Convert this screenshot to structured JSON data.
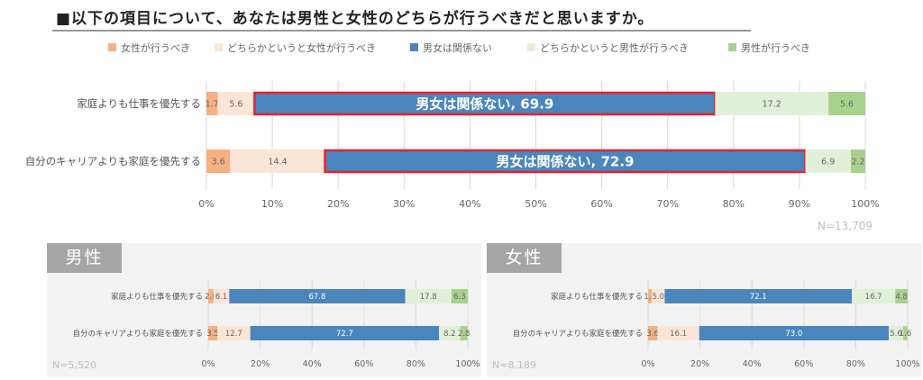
{
  "title": "■以下の項目について、あなたは男性と女性のどちらが行うべきだと思いますか。",
  "legend": [
    {
      "label": "女性が行うべき",
      "color": "#f4b183"
    },
    {
      "label": "どちらかというと女性が行うべき",
      "color": "#fbe5d6"
    },
    {
      "label": "男女は関係ない",
      "color": "#4a86bd"
    },
    {
      "label": "どちらかというと男性が行うべき",
      "color": "#e2efd9"
    },
    {
      "label": "男性が行うべき",
      "color": "#a9d18e"
    }
  ],
  "highlight_color": "#e8202a",
  "chart_data": [
    {
      "type": "bar",
      "orientation": "horizontal-stacked-100",
      "name": "全体",
      "categories": [
        "家庭よりも仕事を優先する",
        "自分のキャリアよりも家庭を優先する"
      ],
      "series": [
        {
          "name": "女性が行うべき",
          "values": [
            1.7,
            3.6
          ]
        },
        {
          "name": "どちらかというと女性が行うべき",
          "values": [
            5.6,
            14.4
          ]
        },
        {
          "name": "男女は関係ない",
          "values": [
            69.9,
            72.9
          ]
        },
        {
          "name": "どちらかというと男性が行うべき",
          "values": [
            17.2,
            6.9
          ]
        },
        {
          "name": "男性が行うべき",
          "values": [
            5.6,
            2.2
          ]
        }
      ],
      "annotations": [
        "男女は関係ない, 69.9",
        "男女は関係ない, 72.9"
      ],
      "xticks": [
        "0%",
        "10%",
        "20%",
        "30%",
        "40%",
        "50%",
        "60%",
        "70%",
        "80%",
        "90%",
        "100%"
      ],
      "xlim": [
        0,
        100
      ],
      "n": "N=13,709"
    },
    {
      "type": "bar",
      "orientation": "horizontal-stacked-100",
      "name": "男性",
      "categories": [
        "家庭よりも仕事を優先する",
        "自分のキャリアよりも家庭を優先する"
      ],
      "series": [
        {
          "name": "女性が行うべき",
          "values": [
            2.0,
            3.5
          ]
        },
        {
          "name": "どちらかというと女性が行うべき",
          "values": [
            6.1,
            12.7
          ]
        },
        {
          "name": "男女は関係ない",
          "values": [
            67.8,
            72.7
          ]
        },
        {
          "name": "どちらかというと男性が行うべき",
          "values": [
            17.8,
            8.2
          ]
        },
        {
          "name": "男性が行うべき",
          "values": [
            6.3,
            2.8
          ]
        }
      ],
      "xticks": [
        "0%",
        "20%",
        "40%",
        "60%",
        "80%",
        "100%"
      ],
      "xlim": [
        0,
        100
      ],
      "n": "N=5,520"
    },
    {
      "type": "bar",
      "orientation": "horizontal-stacked-100",
      "name": "女性",
      "categories": [
        "家庭よりも仕事を優先する",
        "自分のキャリアよりも家庭を優先する"
      ],
      "series": [
        {
          "name": "女性が行うべき",
          "values": [
            1.4,
            3.6
          ]
        },
        {
          "name": "どちらかというと女性が行うべき",
          "values": [
            5.0,
            16.1
          ]
        },
        {
          "name": "男女は関係ない",
          "values": [
            72.1,
            73.0
          ]
        },
        {
          "name": "どちらかというと男性が行うべき",
          "values": [
            16.7,
            5.6
          ]
        },
        {
          "name": "男性が行うべき",
          "values": [
            4.8,
            1.6
          ]
        }
      ],
      "xticks": [
        "0%",
        "20%",
        "40%",
        "60%",
        "80%",
        "100%"
      ],
      "xlim": [
        0,
        100
      ],
      "n": "N=8,189"
    }
  ]
}
